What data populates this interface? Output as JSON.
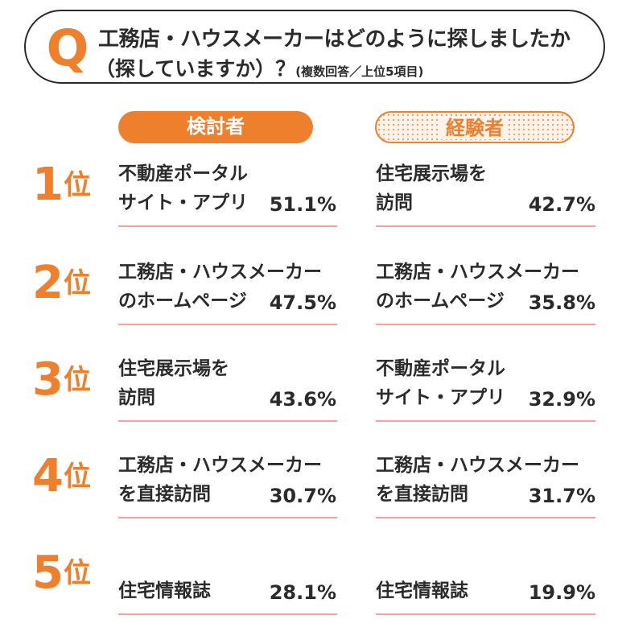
{
  "question": {
    "letter": "Q",
    "line1": "工務店・ハウスメーカーはどのように探しましたか",
    "line2": "（探していますか）？",
    "note": "(複数回答／上位5項目)"
  },
  "columns": {
    "a": "検討者",
    "b": "経験者"
  },
  "rank_suffix": "位",
  "rows": [
    {
      "rank": "1",
      "a": {
        "line1": "不動産ポータル",
        "line2": "サイト・アプリ",
        "pct": "51.1%"
      },
      "b": {
        "line1": "住宅展示場を",
        "line2": "訪問",
        "pct": "42.7%"
      }
    },
    {
      "rank": "2",
      "a": {
        "line1": "工務店・ハウスメーカー",
        "line2": "のホームページ",
        "pct": "47.5%"
      },
      "b": {
        "line1": "工務店・ハウスメーカー",
        "line2": "のホームページ",
        "pct": "35.8%"
      }
    },
    {
      "rank": "3",
      "a": {
        "line1": "住宅展示場を",
        "line2": "訪問",
        "pct": "43.6%"
      },
      "b": {
        "line1": "不動産ポータル",
        "line2": "サイト・アプリ",
        "pct": "32.9%"
      }
    },
    {
      "rank": "4",
      "a": {
        "line1": "工務店・ハウスメーカー",
        "line2": "を直接訪問",
        "pct": "30.7%"
      },
      "b": {
        "line1": "工務店・ハウスメーカー",
        "line2": "を直接訪問",
        "pct": "31.7%"
      }
    },
    {
      "rank": "5",
      "a": {
        "line1": "",
        "line2": "住宅情報誌",
        "pct": "28.1%"
      },
      "b": {
        "line1": "",
        "line2": "住宅情報誌",
        "pct": "19.9%"
      }
    }
  ],
  "colors": {
    "accent": "#ee7f2d",
    "rule": "#f2a1a1",
    "text": "#2b2b2b"
  }
}
